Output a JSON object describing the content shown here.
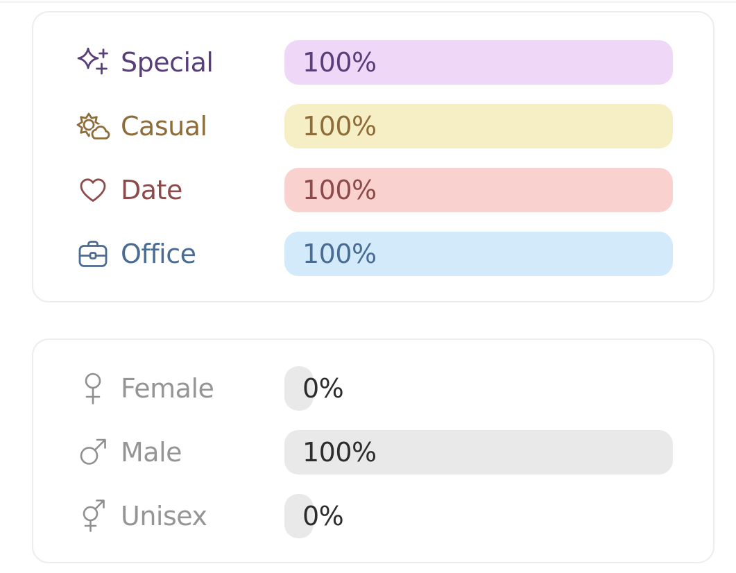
{
  "page": {
    "background": "#ffffff",
    "top_divider_color": "#f2f2f2",
    "card_border_color": "#ededed"
  },
  "cards": [
    {
      "name": "occasion-stats",
      "rows": [
        {
          "id": "special",
          "icon": "sparkles-icon",
          "label": "Special",
          "value_label": "100%",
          "percent": 100,
          "label_color": "#583f7a",
          "value_color": "#583f7a",
          "icon_color": "#583f7a",
          "bar_color": "#efd7f8"
        },
        {
          "id": "casual",
          "icon": "sun-cloud-icon",
          "label": "Casual",
          "value_label": "100%",
          "percent": 100,
          "label_color": "#8d6d3a",
          "value_color": "#8d6d3a",
          "icon_color": "#8d6d3a",
          "bar_color": "#f6eec4"
        },
        {
          "id": "date",
          "icon": "heart-icon",
          "label": "Date",
          "value_label": "100%",
          "percent": 100,
          "label_color": "#8d4a4a",
          "value_color": "#8d4a4a",
          "icon_color": "#8d4a4a",
          "bar_color": "#f9d2cf"
        },
        {
          "id": "office",
          "icon": "briefcase-icon",
          "label": "Office",
          "value_label": "100%",
          "percent": 100,
          "label_color": "#4a6b93",
          "value_color": "#4a6b93",
          "icon_color": "#4a6b93",
          "bar_color": "#d2eafa"
        }
      ]
    },
    {
      "name": "gender-stats",
      "rows": [
        {
          "id": "female",
          "icon": "female-icon",
          "label": "Female",
          "value_label": "0%",
          "percent": 0,
          "label_color": "#959595",
          "value_color": "#2d2d2d",
          "icon_color": "#8f8f8f",
          "bar_color": "#e9e9e9"
        },
        {
          "id": "male",
          "icon": "male-icon",
          "label": "Male",
          "value_label": "100%",
          "percent": 100,
          "label_color": "#959595",
          "value_color": "#2d2d2d",
          "icon_color": "#8f8f8f",
          "bar_color": "#e9e9e9"
        },
        {
          "id": "unisex",
          "icon": "unisex-icon",
          "label": "Unisex",
          "value_label": "0%",
          "percent": 0,
          "label_color": "#959595",
          "value_color": "#2d2d2d",
          "icon_color": "#8f8f8f",
          "bar_color": "#e9e9e9"
        }
      ]
    }
  ]
}
